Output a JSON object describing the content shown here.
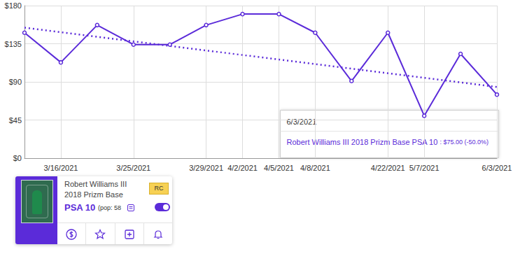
{
  "chart_data": {
    "type": "line",
    "categories": [
      null,
      "3/16/2021",
      null,
      "3/25/2021",
      null,
      "3/29/2021",
      "4/2/2021",
      "4/5/2021",
      "4/8/2021",
      null,
      "4/22/2021",
      "5/7/2021",
      null,
      "6/3/2021"
    ],
    "series": [
      {
        "values": [
          148,
          113,
          157,
          134,
          134,
          157,
          170,
          170,
          148,
          91,
          148,
          50,
          123,
          75
        ],
        "color": "#5b2bd9",
        "marker": "circle",
        "line_style": "solid"
      },
      {
        "values": [
          154,
          null,
          null,
          null,
          null,
          null,
          null,
          null,
          null,
          null,
          null,
          null,
          null,
          84
        ],
        "color": "#5b2bd9",
        "marker": "none",
        "line_style": "dotted"
      }
    ],
    "ylim": [
      0,
      180
    ],
    "yticks": [
      {
        "value": 0,
        "label": "$0"
      },
      {
        "value": 45,
        "label": "$45"
      },
      {
        "value": 90,
        "label": "$90"
      },
      {
        "value": 135,
        "label": "$135"
      },
      {
        "value": 180,
        "label": "$180"
      }
    ],
    "grid": true,
    "annotation": {
      "date": "6/3/2021",
      "label": "Robert Williams III 2018 Prizm Base PSA 10",
      "value_text": " : $75.00 (-50.0%)"
    }
  },
  "card": {
    "player": "Robert Williams III",
    "set": "2018 Prizm Base",
    "badge": "RC",
    "grade": "PSA 10",
    "pop": "(pop: 58"
  }
}
